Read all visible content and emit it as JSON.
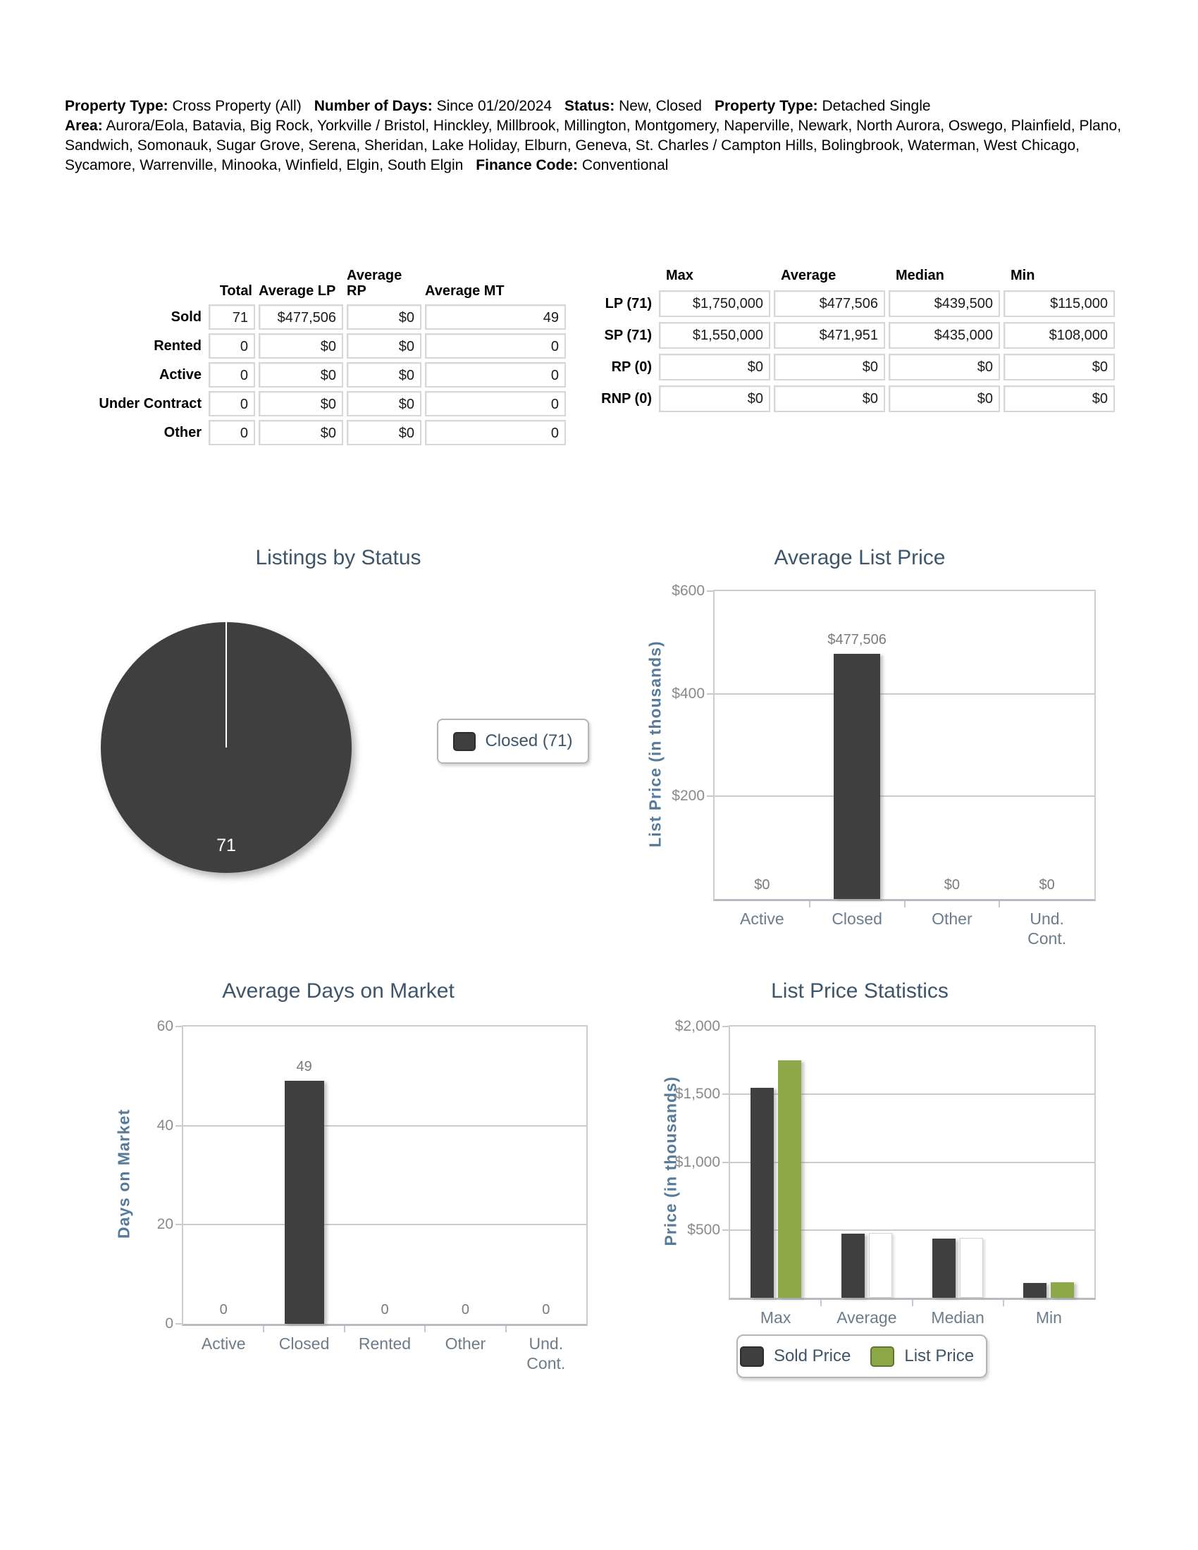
{
  "header": {
    "criteria": [
      {
        "label": "Property Type:",
        "value": "Cross Property (All)"
      },
      {
        "label": "Number of Days:",
        "value": "Since 01/20/2024"
      },
      {
        "label": "Status:",
        "value": "New, Closed"
      },
      {
        "label": "Property Type:",
        "value": "Detached Single"
      },
      {
        "label": "Area:",
        "value": "Aurora/Eola, Batavia, Big Rock, Yorkville / Bristol, Hinckley, Millbrook, Millington, Montgomery, Naperville, Newark, North Aurora, Oswego, Plainfield, Plano, Sandwich, Somonauk, Sugar Grove, Serena, Sheridan, Lake Holiday, Elburn, Geneva, St. Charles / Campton Hills, Bolingbrook, Waterman, West Chicago, Sycamore, Warrenville, Minooka, Winfield, Elgin, South Elgin"
      },
      {
        "label": "Finance Code:",
        "value": "Conventional"
      }
    ]
  },
  "status_table": {
    "columns": [
      "Total",
      "Average LP",
      "Average RP",
      "Average MT"
    ],
    "rows": [
      {
        "label": "Sold",
        "values": [
          "71",
          "$477,506",
          "$0",
          "49"
        ]
      },
      {
        "label": "Rented",
        "values": [
          "0",
          "$0",
          "$0",
          "0"
        ]
      },
      {
        "label": "Active",
        "values": [
          "0",
          "$0",
          "$0",
          "0"
        ]
      },
      {
        "label": "Under Contract",
        "values": [
          "0",
          "$0",
          "$0",
          "0"
        ]
      },
      {
        "label": "Other",
        "values": [
          "0",
          "$0",
          "$0",
          "0"
        ]
      }
    ]
  },
  "price_table": {
    "columns": [
      "Max",
      "Average",
      "Median",
      "Min"
    ],
    "rows": [
      {
        "label": "LP (71)",
        "values": [
          "$1,750,000",
          "$477,506",
          "$439,500",
          "$115,000"
        ]
      },
      {
        "label": "SP (71)",
        "values": [
          "$1,550,000",
          "$471,951",
          "$435,000",
          "$108,000"
        ]
      },
      {
        "label": "RP (0)",
        "values": [
          "$0",
          "$0",
          "$0",
          "$0"
        ]
      },
      {
        "label": "RNP (0)",
        "values": [
          "$0",
          "$0",
          "$0",
          "$0"
        ]
      }
    ]
  },
  "chart_data": [
    {
      "type": "pie",
      "title": "Listings by Status",
      "slices": [
        {
          "label": "Closed",
          "value": 71,
          "color": "#3f3f3f"
        }
      ],
      "value_label": "71",
      "legend": [
        {
          "label": "Closed (71)",
          "color": "#3f3f3f"
        }
      ],
      "legend_position": "right"
    },
    {
      "type": "bar",
      "title": "Average List Price",
      "ylabel": "List Price (in thousands)",
      "categories": [
        "Active",
        "Closed",
        "Other",
        "Und.\nCont."
      ],
      "values": [
        0,
        477.506,
        0,
        0
      ],
      "bar_labels": [
        "$0",
        "$477,506",
        "$0",
        "$0"
      ],
      "ylim": [
        0,
        600
      ],
      "yticks": [
        {
          "value": 600,
          "label": "$600"
        },
        {
          "value": 400,
          "label": "$400"
        },
        {
          "value": 200,
          "label": "$200"
        }
      ],
      "bar_color": "#3f3f3f",
      "grid": true
    },
    {
      "type": "bar",
      "title": "Average Days on Market",
      "ylabel": "Days on Market",
      "categories": [
        "Active",
        "Closed",
        "Rented",
        "Other",
        "Und.\nCont."
      ],
      "values": [
        0,
        49,
        0,
        0,
        0
      ],
      "bar_labels": [
        "0",
        "49",
        "0",
        "0",
        "0"
      ],
      "ylim": [
        0,
        60
      ],
      "yticks": [
        {
          "value": 60,
          "label": "60"
        },
        {
          "value": 40,
          "label": "40"
        },
        {
          "value": 20,
          "label": "20"
        },
        {
          "value": 0,
          "label": "0"
        }
      ],
      "bar_color": "#3f3f3f",
      "grid": true
    },
    {
      "type": "bar",
      "title": "List Price Statistics",
      "ylabel": "Price (in thousands)",
      "categories": [
        "Max",
        "Average",
        "Median",
        "Min"
      ],
      "series": [
        {
          "name": "Sold Price",
          "color": "#3f3f3f",
          "values": [
            1550,
            471.951,
            435,
            108
          ]
        },
        {
          "name": "List Price",
          "color": "#8ca848",
          "values": [
            1750,
            477.506,
            439.5,
            115
          ],
          "rendered": [
            true,
            false,
            false,
            true
          ]
        }
      ],
      "ylim": [
        0,
        2000
      ],
      "yticks": [
        {
          "value": 2000,
          "label": "$2,000"
        },
        {
          "value": 1500,
          "label": "$1,500"
        },
        {
          "value": 1000,
          "label": "$1,000"
        },
        {
          "value": 500,
          "label": "$500"
        }
      ],
      "legend_position": "bottom",
      "grid": true
    }
  ]
}
